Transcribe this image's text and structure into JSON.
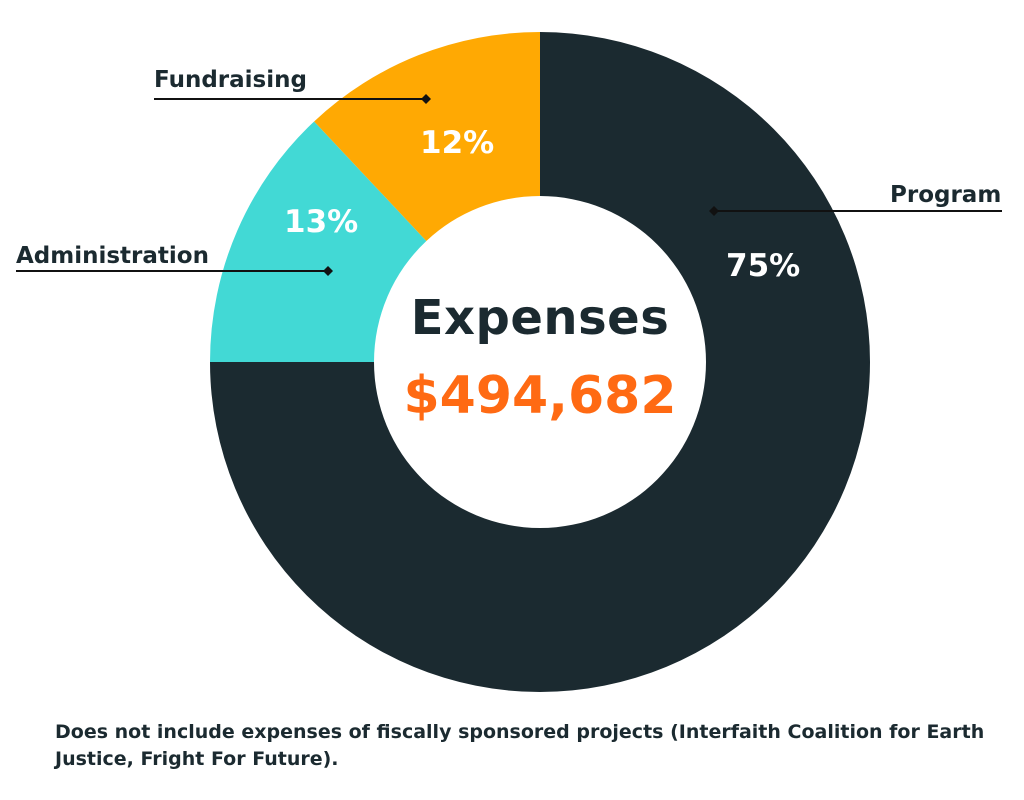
{
  "chart_data": {
    "type": "pie",
    "style": "donut",
    "title": "Expenses",
    "total_label": "$494,682",
    "categories": [
      "Program",
      "Administration",
      "Fundraising"
    ],
    "values": [
      75,
      13,
      12
    ],
    "value_labels": [
      "75%",
      "13%",
      "12%"
    ],
    "colors": [
      "#1b2a30",
      "#42d9d5",
      "#ffa903"
    ],
    "legend": "callouts"
  },
  "colors": {
    "title": "#1b2a30",
    "total": "#ff6a13",
    "slice_label": "#ffffff"
  },
  "footnote": "Does not include expenses of fiscally sponsored projects (Interfaith Coalition for Earth Justice, Fright For Future)."
}
